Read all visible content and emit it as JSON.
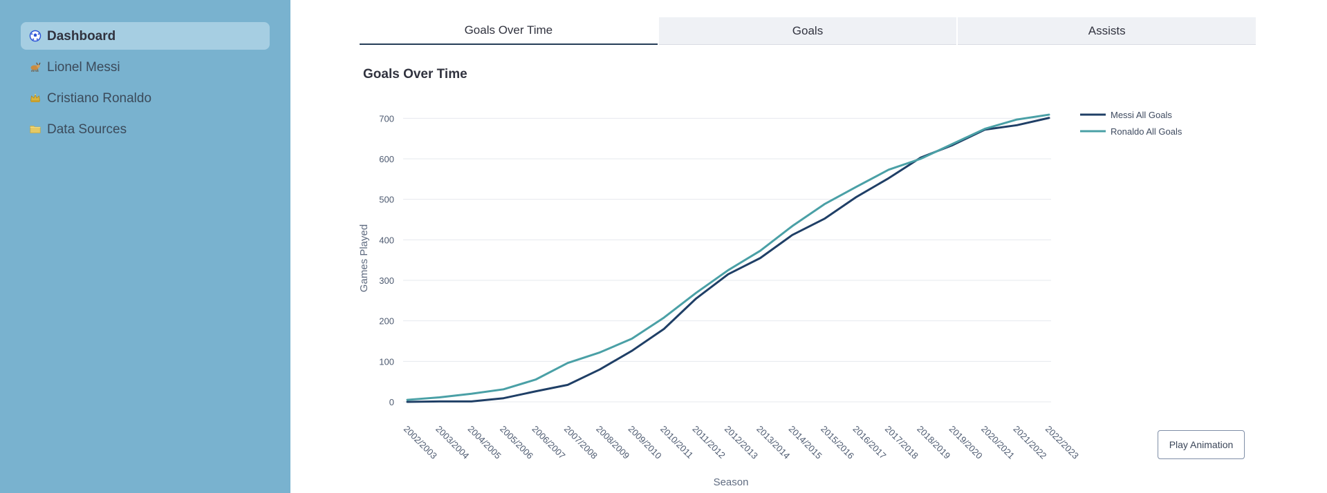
{
  "sidebar": {
    "items": [
      {
        "label": "Dashboard",
        "icon": "soccer-ball-icon",
        "active": true
      },
      {
        "label": "Lionel Messi",
        "icon": "goat-icon",
        "active": false
      },
      {
        "label": "Cristiano Ronaldo",
        "icon": "crown-icon",
        "active": false
      },
      {
        "label": "Data Sources",
        "icon": "folder-icon",
        "active": false
      }
    ]
  },
  "tabs": [
    {
      "label": "Goals Over Time",
      "active": true
    },
    {
      "label": "Goals",
      "active": false
    },
    {
      "label": "Assists",
      "active": false
    }
  ],
  "chart_title": "Goals Over Time",
  "chart_data": {
    "type": "line",
    "title": "Goals Over Time",
    "xlabel": "Season",
    "ylabel": "Games Played",
    "x": [
      "2002/2003",
      "2003/2004",
      "2004/2005",
      "2005/2006",
      "2006/2007",
      "2007/2008",
      "2008/2009",
      "2009/2010",
      "2010/2011",
      "2011/2012",
      "2012/2013",
      "2013/2014",
      "2014/2015",
      "2015/2016",
      "2016/2017",
      "2017/2018",
      "2018/2019",
      "2019/2020",
      "2020/2021",
      "2021/2022",
      "2022/2023"
    ],
    "ylim": [
      0,
      750
    ],
    "yticks": [
      0,
      100,
      200,
      300,
      400,
      500,
      600,
      700
    ],
    "grid": true,
    "legend": "top-right",
    "series": [
      {
        "name": "Messi All Goals",
        "color": "#1f3f66",
        "values": [
          0,
          1,
          1,
          9,
          26,
          42,
          80,
          126,
          180,
          255,
          315,
          355,
          412,
          452,
          506,
          552,
          603,
          634,
          672,
          683,
          701
        ]
      },
      {
        "name": "Ronaldo All Goals",
        "color": "#4aa0a6",
        "values": [
          5,
          11,
          20,
          31,
          55,
          96,
          122,
          156,
          208,
          269,
          325,
          373,
          434,
          488,
          531,
          573,
          600,
          637,
          674,
          697,
          709
        ]
      }
    ]
  },
  "play_button": {
    "label": "Play Animation"
  }
}
